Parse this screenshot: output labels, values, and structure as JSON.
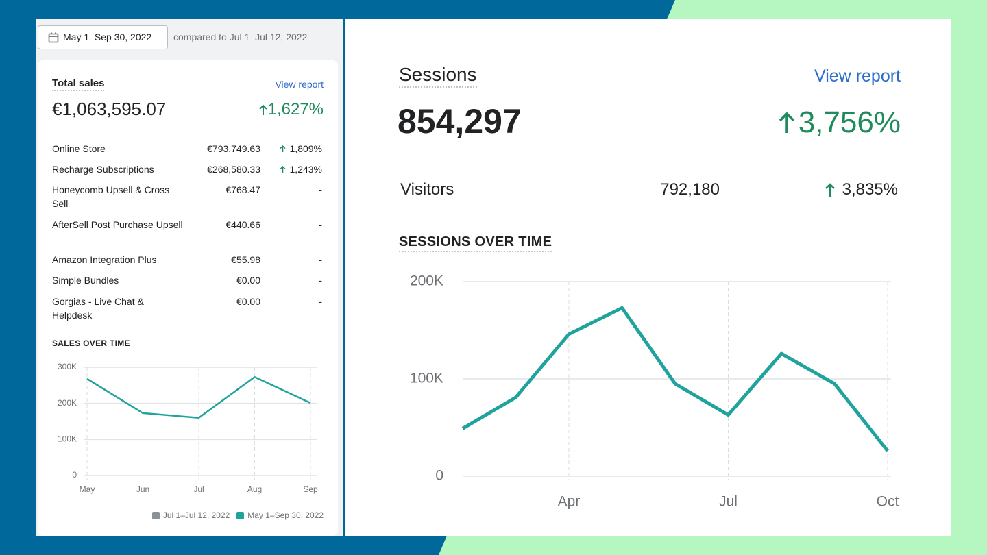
{
  "date_range": "May 1–Sep 30, 2022",
  "comparison": "compared to Jul 1–Jul 12, 2022",
  "total_sales": {
    "title": "Total sales",
    "link": "View report",
    "value": "€1,063,595.07",
    "change": "1,627%",
    "rows": [
      {
        "name": "Online Store",
        "value": "€793,749.63",
        "change": "1,809%"
      },
      {
        "name": "Recharge Subscriptions",
        "value": "€268,580.33",
        "change": "1,243%"
      },
      {
        "name": "Honeycomb Upsell & Cross Sell",
        "value": "€768.47",
        "change": "-"
      },
      {
        "name": "AfterSell Post Purchase Upsell",
        "value": "€440.66",
        "change": "-"
      },
      {
        "name": "Amazon Integration Plus",
        "value": "€55.98",
        "change": "-"
      },
      {
        "name": "Simple Bundles",
        "value": "€0.00",
        "change": "-"
      },
      {
        "name": "Gorgias - Live Chat & Helpdesk",
        "value": "€0.00",
        "change": "-"
      }
    ]
  },
  "sessions": {
    "title": "Sessions",
    "link": "View report",
    "value": "854,297",
    "change": "3,756%",
    "visitors": {
      "label": "Visitors",
      "value": "792,180",
      "change": "3,835%"
    }
  },
  "chart_data": [
    {
      "type": "line",
      "title": "SALES OVER TIME",
      "categories": [
        "May",
        "Jun",
        "Jul",
        "Aug",
        "Sep"
      ],
      "series": [
        {
          "name": "Jul 1–Jul 12, 2022",
          "color": "#8c9196",
          "values": [
            null,
            null,
            null,
            null,
            null
          ]
        },
        {
          "name": "May 1–Sep 30, 2022",
          "color": "#21a39d",
          "values": [
            268000,
            173000,
            160000,
            273000,
            201000
          ]
        }
      ],
      "ylim": [
        0,
        300000
      ],
      "yticks": [
        0,
        {
          "value": 100000,
          "label": "100K"
        },
        {
          "value": 200000,
          "label": "200K"
        },
        {
          "value": 300000,
          "label": "300K"
        }
      ],
      "grid": true
    },
    {
      "type": "line",
      "title": "SESSIONS OVER TIME",
      "categories": [
        null,
        null,
        "Apr",
        null,
        null,
        "Jul",
        null,
        null,
        "Oct"
      ],
      "values": [
        49000,
        81000,
        146000,
        173000,
        95000,
        63000,
        126000,
        95000,
        26000
      ],
      "color": "#21a39d",
      "ylim": [
        0,
        200000
      ],
      "yticks": [
        0,
        {
          "value": 100000,
          "label": "100K"
        },
        {
          "value": 200000,
          "label": "200K"
        }
      ],
      "grid": true
    }
  ]
}
